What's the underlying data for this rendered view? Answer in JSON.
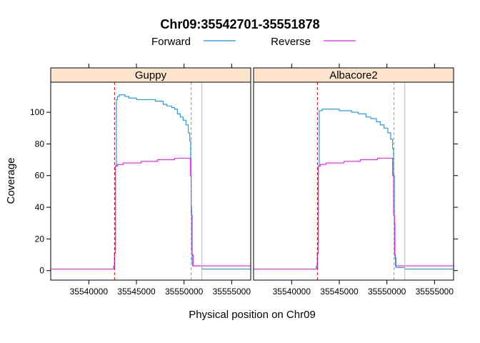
{
  "chart_data": {
    "type": "line",
    "title": "Chr09:35542701-35551878",
    "xlabel": "Physical position on Chr09",
    "ylabel": "Coverage",
    "xlim": [
      35536000,
      35557000
    ],
    "ylim": [
      -6,
      119
    ],
    "x_ticks": [
      35540000,
      35545000,
      35550000,
      35555000
    ],
    "x_tick_labels": [
      "35540000",
      "35545000",
      "35550000",
      "35555000"
    ],
    "y_ticks": [
      0,
      20,
      40,
      60,
      80,
      100
    ],
    "y_tick_labels": [
      "0",
      "20",
      "40",
      "60",
      "80",
      "100"
    ],
    "legend": {
      "placement": "top",
      "entries": [
        {
          "label": "Forward",
          "color": "#1a8fe0"
        },
        {
          "label": "Reverse",
          "color": "#e61ee6"
        }
      ]
    },
    "reference_lines": [
      {
        "x": 35542701,
        "color": "#cc0000",
        "style": "dashed"
      },
      {
        "x": 35550750,
        "color": "#33dd33",
        "style": "dashed"
      },
      {
        "x": 35551878,
        "color": "#bbbbbb",
        "style": "solid"
      }
    ],
    "panels": [
      {
        "name": "Guppy",
        "series": [
          {
            "name": "Forward",
            "color": "#1a8fe0",
            "x": [
              35536000,
              35542300,
              35542600,
              35542701,
              35542780,
              35542800,
              35542900,
              35543000,
              35543200,
              35543800,
              35544200,
              35545000,
              35546500,
              35547000,
              35547800,
              35548200,
              35548700,
              35549000,
              35549300,
              35549600,
              35549900,
              35550200,
              35550450,
              35550600,
              35550700,
              35550750,
              35550800,
              35550850,
              35550900,
              35551878,
              35557000
            ],
            "values": [
              1,
              1,
              3,
              11,
              18,
              66,
              108,
              110,
              111,
              110,
              109,
              108,
              108,
              107,
              105,
              104,
              103,
              102,
              99,
              97,
              95,
              92,
              87,
              82,
              70,
              40,
              12,
              5,
              3,
              1,
              1
            ]
          },
          {
            "name": "Reverse",
            "color": "#e61ee6",
            "x": [
              35536000,
              35542300,
              35542600,
              35542701,
              35542800,
              35543000,
              35543600,
              35544500,
              35545500,
              35546500,
              35547200,
              35547800,
              35548300,
              35549000,
              35550000,
              35550500,
              35550650,
              35550750,
              35550850,
              35550950,
              35557000
            ],
            "values": [
              1,
              1,
              2,
              11,
              66,
              67,
              68,
              68,
              69,
              69,
              70,
              70,
              70,
              71,
              71,
              71,
              60,
              35,
              10,
              3,
              1
            ]
          }
        ]
      },
      {
        "name": "Albacore2",
        "series": [
          {
            "name": "Forward",
            "color": "#1a8fe0",
            "x": [
              35536000,
              35542300,
              35542600,
              35542701,
              35542780,
              35542800,
              35542900,
              35543200,
              35544000,
              35545000,
              35546300,
              35547000,
              35547800,
              35548300,
              35548900,
              35549300,
              35549700,
              35550100,
              35550400,
              35550600,
              35550700,
              35550780,
              35550850,
              35550950,
              35551878,
              35557000
            ],
            "values": [
              1,
              1,
              3,
              11,
              18,
              66,
              101,
              102,
              102,
              101,
              100,
              99,
              97,
              96,
              94,
              92,
              90,
              87,
              83,
              77,
              60,
              30,
              8,
              2,
              1,
              1
            ]
          },
          {
            "name": "Reverse",
            "color": "#e61ee6",
            "x": [
              35536000,
              35542300,
              35542600,
              35542701,
              35542800,
              35543000,
              35543600,
              35544500,
              35545500,
              35546500,
              35547200,
              35547800,
              35548300,
              35549000,
              35550000,
              35550400,
              35550600,
              35550700,
              35550800,
              35550900,
              35557000
            ],
            "values": [
              1,
              1,
              2,
              11,
              66,
              67,
              68,
              68,
              69,
              69,
              70,
              70,
              70,
              71,
              71,
              71,
              60,
              35,
              10,
              3,
              1
            ]
          }
        ]
      }
    ]
  }
}
